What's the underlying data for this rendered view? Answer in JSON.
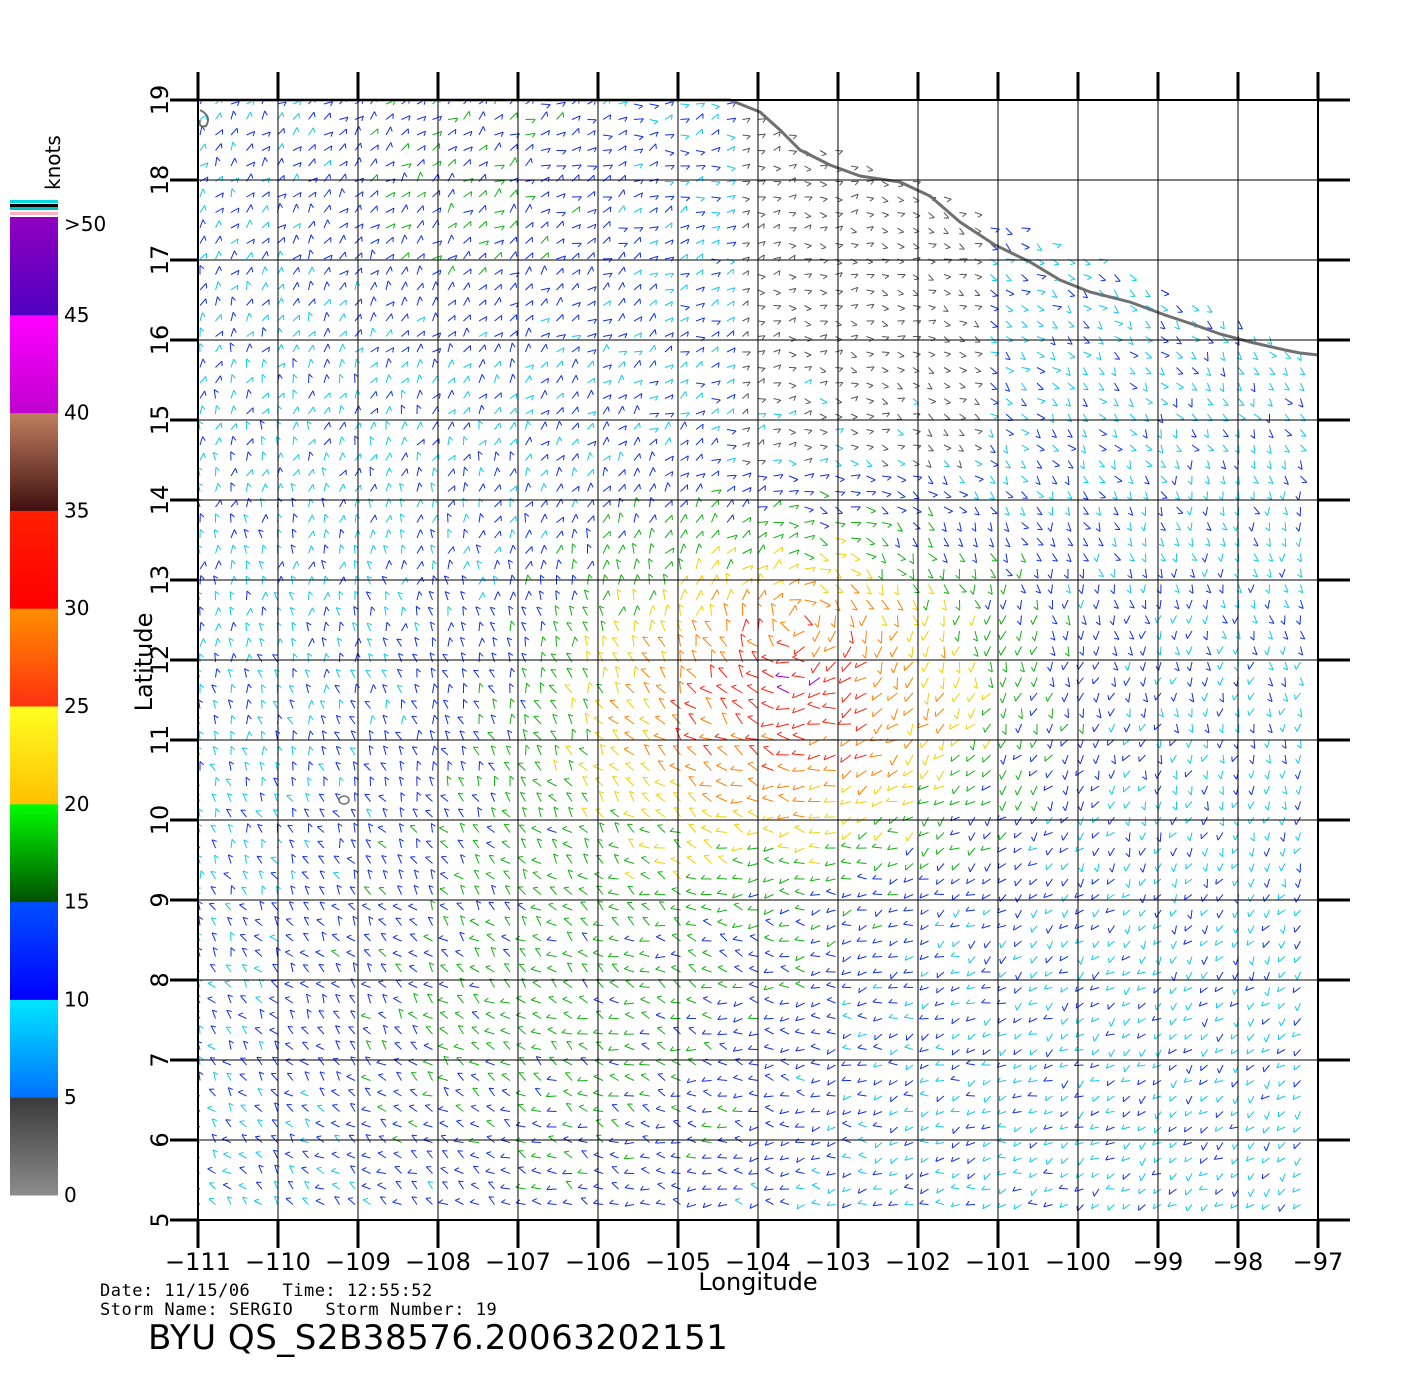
{
  "map": {
    "x_axis_label": "Longitude",
    "y_axis_label": "Latitude",
    "lon_range": [
      -111,
      -97
    ],
    "lat_range": [
      5,
      19
    ],
    "lon_ticks": [
      "-111",
      "-110",
      "-109",
      "-108",
      "-107",
      "-106",
      "-105",
      "-104",
      "-103",
      "-102",
      "-101",
      "-100",
      "-99",
      "-98",
      "-97"
    ],
    "lat_ticks": [
      "5",
      "6",
      "7",
      "8",
      "9",
      "10",
      "11",
      "12",
      "13",
      "14",
      "15",
      "16",
      "17",
      "18",
      "19"
    ],
    "coastline_color": "#707070",
    "grid_color": "#000000"
  },
  "colorbar": {
    "unit_label": "knots",
    "labels": [
      "0",
      "5",
      "10",
      "15",
      "20",
      "25",
      "30",
      "35",
      "40",
      "45",
      ">50"
    ],
    "bands": [
      {
        "from": 0,
        "to": 5,
        "top": "#3a3a3a",
        "bottom": "#8c8c8c"
      },
      {
        "from": 5,
        "to": 10,
        "top": "#00e8ff",
        "bottom": "#0070ff"
      },
      {
        "from": 10,
        "to": 15,
        "top": "#0050ff",
        "bottom": "#0000ff"
      },
      {
        "from": 15,
        "to": 20,
        "top": "#00ff00",
        "bottom": "#005000"
      },
      {
        "from": 20,
        "to": 25,
        "top": "#ffff20",
        "bottom": "#ffc000"
      },
      {
        "from": 25,
        "to": 30,
        "top": "#ff9000",
        "bottom": "#ff3010"
      },
      {
        "from": 30,
        "to": 35,
        "top": "#ff2000",
        "bottom": "#ff0000"
      },
      {
        "from": 35,
        "to": 40,
        "top": "#c08060",
        "bottom": "#401010"
      },
      {
        "from": 40,
        "to": 45,
        "top": "#ff00ff",
        "bottom": "#c000d0"
      },
      {
        "from": 45,
        "to": 50,
        "top": "#9000c0",
        "bottom": "#5000c0"
      }
    ]
  },
  "footer": {
    "date_time": "Date: 11/15/06   Time: 12:55:52",
    "storm": "Storm Name: SERGIO   Storm Number: 19",
    "file_id": "BYU QS_S2B38576.20063202151"
  }
}
